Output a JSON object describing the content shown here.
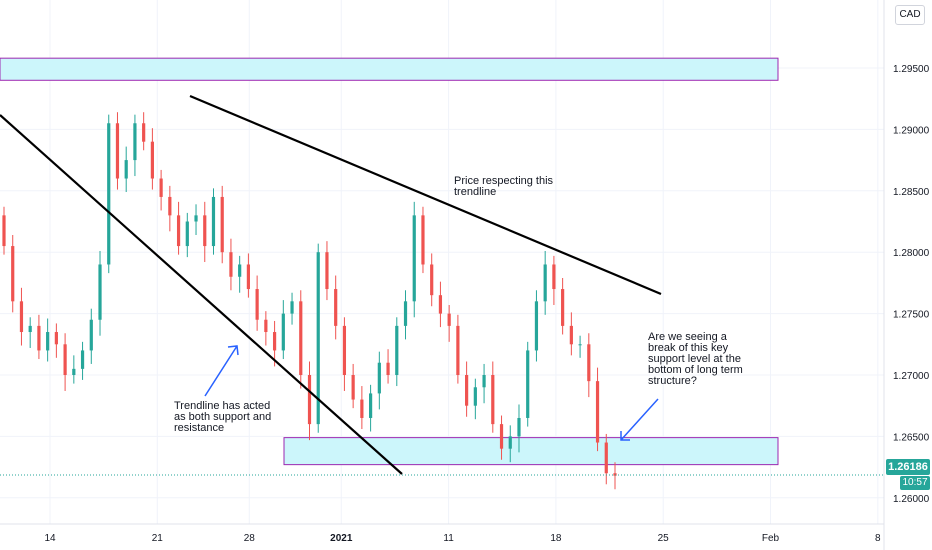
{
  "currency": "CAD",
  "last_price": "1.26186",
  "countdown": "10:57",
  "chart_data": {
    "type": "candlestick",
    "y_ticks": [
      "1.29500",
      "1.29000",
      "1.28500",
      "1.28000",
      "1.27500",
      "1.27000",
      "1.26500",
      "1.26000"
    ],
    "ylim": [
      1.2587,
      1.299
    ],
    "x_ticks": [
      {
        "label": "14",
        "bold": false
      },
      {
        "label": "21",
        "bold": false
      },
      {
        "label": "28",
        "bold": false
      },
      {
        "label": "2021",
        "bold": true
      },
      {
        "label": "11",
        "bold": false
      },
      {
        "label": "18",
        "bold": false
      },
      {
        "label": "25",
        "bold": false
      },
      {
        "label": "Feb",
        "bold": false
      },
      {
        "label": "8",
        "bold": false
      }
    ],
    "last_price": 1.26186,
    "zones": [
      {
        "name": "resistance-zone",
        "y_top": 1.2958,
        "y_bottom": 1.294
      },
      {
        "name": "support-zone",
        "y_top": 1.2649,
        "y_bottom": 1.2627
      }
    ],
    "trendlines": [
      {
        "name": "descending-resistance-trendline",
        "p1": [
          1.2925,
          23.5
        ],
        "p2": [
          1.2761,
          64.5
        ]
      },
      {
        "name": "descending-support-trendline",
        "p1": [
          1.2906,
          0
        ],
        "p2": [
          1.2615,
          36.5
        ]
      }
    ],
    "annotations": [
      {
        "name": "trendline-note",
        "lines": [
          "Price respecting this",
          "trendline"
        ]
      },
      {
        "name": "support-trendline-note",
        "lines": [
          "Trendline has acted",
          "as both support and",
          "resistance"
        ]
      },
      {
        "name": "break-question-note",
        "lines": [
          "Are we seeing a",
          "break of this key",
          "support level at the",
          "bottom of long term",
          "structure?"
        ]
      }
    ]
  }
}
